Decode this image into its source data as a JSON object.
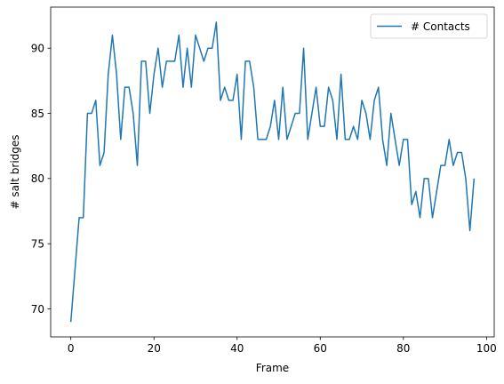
{
  "chart_data": {
    "type": "line",
    "title": "",
    "xlabel": "Frame",
    "ylabel": "# salt bridges",
    "xlim": [
      -4.85,
      101.85
    ],
    "ylim": [
      67.85,
      93.15
    ],
    "xticks": [
      0,
      20,
      40,
      60,
      80,
      100
    ],
    "yticks": [
      70,
      75,
      80,
      85,
      90
    ],
    "grid": false,
    "legend_position": "top-right",
    "series": [
      {
        "name": "# Contacts",
        "color": "#1f77b4",
        "x": [
          0,
          1,
          2,
          3,
          4,
          5,
          6,
          7,
          8,
          9,
          10,
          11,
          12,
          13,
          14,
          15,
          16,
          17,
          18,
          19,
          20,
          21,
          22,
          23,
          24,
          25,
          26,
          27,
          28,
          29,
          30,
          31,
          32,
          33,
          34,
          35,
          36,
          37,
          38,
          39,
          40,
          41,
          42,
          43,
          44,
          45,
          46,
          47,
          48,
          49,
          50,
          51,
          52,
          53,
          54,
          55,
          56,
          57,
          58,
          59,
          60,
          61,
          62,
          63,
          64,
          65,
          66,
          67,
          68,
          69,
          70,
          71,
          72,
          73,
          74,
          75,
          76,
          77,
          78,
          79,
          80,
          81,
          82,
          83,
          84,
          85,
          86,
          87,
          88,
          89,
          90,
          91,
          92,
          93,
          94,
          95,
          96,
          97
        ],
        "values": [
          69,
          73,
          77,
          77,
          85,
          85,
          86,
          81,
          82,
          88,
          91,
          88,
          83,
          87,
          87,
          85,
          81,
          89,
          89,
          85,
          88,
          90,
          87,
          89,
          89,
          89,
          91,
          87,
          90,
          87,
          91,
          90,
          89,
          90,
          90,
          92,
          86,
          87,
          86,
          86,
          88,
          83,
          89,
          89,
          87,
          83,
          83,
          83,
          84,
          86,
          83,
          87,
          83,
          84,
          85,
          85,
          90,
          83,
          85,
          87,
          84,
          84,
          87,
          86,
          83,
          88,
          83,
          83,
          84,
          83,
          86,
          85,
          83,
          86,
          87,
          83,
          81,
          85,
          83,
          81,
          83,
          83,
          78,
          79,
          77,
          80,
          80,
          77,
          79,
          81,
          81,
          83,
          81,
          82,
          82,
          80,
          76,
          80
        ]
      }
    ]
  }
}
